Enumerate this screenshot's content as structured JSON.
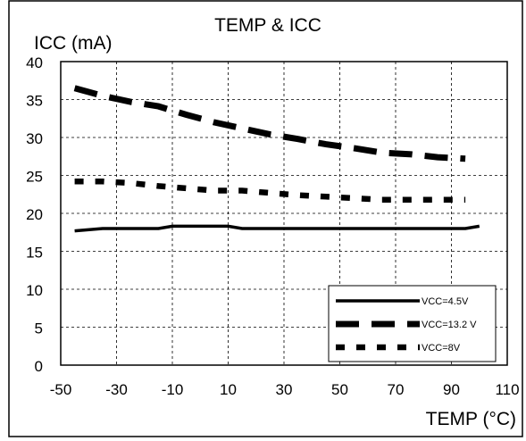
{
  "chart_data": {
    "type": "line",
    "title": "TEMP & ICC",
    "ylabel": "ICC (mA)",
    "xlabel": "TEMP (°C)",
    "xlim": [
      -50,
      110
    ],
    "ylim": [
      0,
      40
    ],
    "x_ticks": [
      -50,
      -30,
      -10,
      10,
      30,
      50,
      70,
      90,
      110
    ],
    "x_tick_labels": [
      "-50",
      "-30",
      "-10",
      "10",
      "30",
      "50",
      "70",
      "90",
      "110"
    ],
    "y_ticks": [
      0,
      5,
      10,
      15,
      20,
      25,
      30,
      35,
      40
    ],
    "y_tick_labels": [
      "0",
      "5",
      "10",
      "15",
      "20",
      "25",
      "30",
      "35",
      "40"
    ],
    "grid": true,
    "legend_position": "bottom-right",
    "series": [
      {
        "name": "VCC=4.5V",
        "style": "solid",
        "x": [
          -45,
          -35,
          -25,
          -15,
          -10,
          -5,
          0,
          5,
          10,
          15,
          25,
          35,
          45,
          55,
          65,
          75,
          85,
          95,
          100
        ],
        "y": [
          17.7,
          18.0,
          18.0,
          18.0,
          18.3,
          18.3,
          18.3,
          18.3,
          18.3,
          18.0,
          18.0,
          18.0,
          18.0,
          18.0,
          18.0,
          18.0,
          18.0,
          18.0,
          18.3
        ]
      },
      {
        "name": "VCC=13.2  V",
        "style": "long-dash",
        "x": [
          -45,
          -35,
          -25,
          -15,
          -5,
          5,
          15,
          25,
          35,
          45,
          55,
          65,
          75,
          85,
          95
        ],
        "y": [
          36.5,
          35.5,
          34.7,
          34.1,
          33.0,
          32.0,
          31.2,
          30.4,
          29.8,
          29.1,
          28.6,
          28.0,
          27.8,
          27.4,
          27.2
        ]
      },
      {
        "name": "VCC=8V",
        "style": "short-dash",
        "x": [
          -45,
          -35,
          -25,
          -15,
          -5,
          5,
          15,
          25,
          35,
          45,
          55,
          65,
          75,
          85,
          95
        ],
        "y": [
          24.2,
          24.2,
          24.0,
          23.6,
          23.3,
          23.0,
          23.0,
          22.7,
          22.4,
          22.2,
          22.0,
          21.8,
          21.8,
          21.8,
          21.8
        ]
      }
    ],
    "colors": {
      "line": "#000000",
      "grid": "#000000",
      "background": "#ffffff"
    }
  }
}
